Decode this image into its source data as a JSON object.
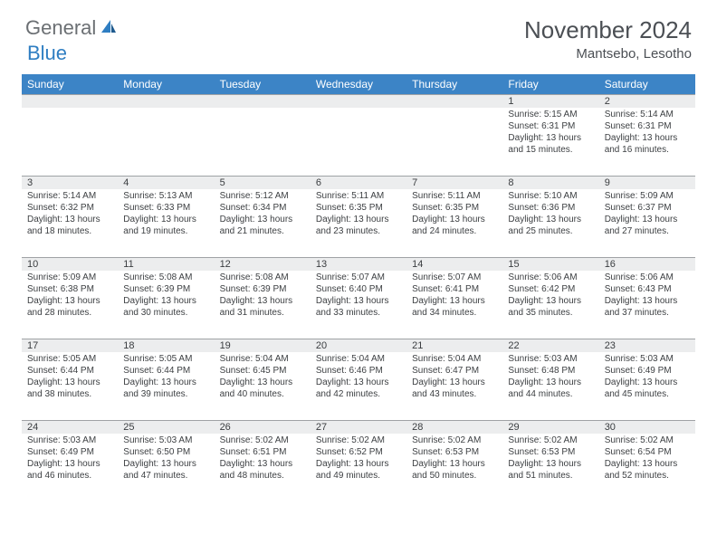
{
  "logo": {
    "general": "General",
    "blue": "Blue"
  },
  "title": "November 2024",
  "subtitle": "Mantsebo, Lesotho",
  "colors": {
    "header_bg": "#3c84c6",
    "header_text": "#ffffff",
    "daynum_bg": "#ecedee",
    "row_border": "#9fa2a5",
    "body_text": "#3c3f42",
    "title_text": "#4b4f54",
    "logo_gray": "#6b6f73",
    "logo_blue": "#2f7ec2"
  },
  "day_headers": [
    "Sunday",
    "Monday",
    "Tuesday",
    "Wednesday",
    "Thursday",
    "Friday",
    "Saturday"
  ],
  "weeks": [
    [
      {
        "n": "",
        "sr": "",
        "ss": "",
        "dl": ""
      },
      {
        "n": "",
        "sr": "",
        "ss": "",
        "dl": ""
      },
      {
        "n": "",
        "sr": "",
        "ss": "",
        "dl": ""
      },
      {
        "n": "",
        "sr": "",
        "ss": "",
        "dl": ""
      },
      {
        "n": "",
        "sr": "",
        "ss": "",
        "dl": ""
      },
      {
        "n": "1",
        "sr": "Sunrise: 5:15 AM",
        "ss": "Sunset: 6:31 PM",
        "dl": "Daylight: 13 hours and 15 minutes."
      },
      {
        "n": "2",
        "sr": "Sunrise: 5:14 AM",
        "ss": "Sunset: 6:31 PM",
        "dl": "Daylight: 13 hours and 16 minutes."
      }
    ],
    [
      {
        "n": "3",
        "sr": "Sunrise: 5:14 AM",
        "ss": "Sunset: 6:32 PM",
        "dl": "Daylight: 13 hours and 18 minutes."
      },
      {
        "n": "4",
        "sr": "Sunrise: 5:13 AM",
        "ss": "Sunset: 6:33 PM",
        "dl": "Daylight: 13 hours and 19 minutes."
      },
      {
        "n": "5",
        "sr": "Sunrise: 5:12 AM",
        "ss": "Sunset: 6:34 PM",
        "dl": "Daylight: 13 hours and 21 minutes."
      },
      {
        "n": "6",
        "sr": "Sunrise: 5:11 AM",
        "ss": "Sunset: 6:35 PM",
        "dl": "Daylight: 13 hours and 23 minutes."
      },
      {
        "n": "7",
        "sr": "Sunrise: 5:11 AM",
        "ss": "Sunset: 6:35 PM",
        "dl": "Daylight: 13 hours and 24 minutes."
      },
      {
        "n": "8",
        "sr": "Sunrise: 5:10 AM",
        "ss": "Sunset: 6:36 PM",
        "dl": "Daylight: 13 hours and 25 minutes."
      },
      {
        "n": "9",
        "sr": "Sunrise: 5:09 AM",
        "ss": "Sunset: 6:37 PM",
        "dl": "Daylight: 13 hours and 27 minutes."
      }
    ],
    [
      {
        "n": "10",
        "sr": "Sunrise: 5:09 AM",
        "ss": "Sunset: 6:38 PM",
        "dl": "Daylight: 13 hours and 28 minutes."
      },
      {
        "n": "11",
        "sr": "Sunrise: 5:08 AM",
        "ss": "Sunset: 6:39 PM",
        "dl": "Daylight: 13 hours and 30 minutes."
      },
      {
        "n": "12",
        "sr": "Sunrise: 5:08 AM",
        "ss": "Sunset: 6:39 PM",
        "dl": "Daylight: 13 hours and 31 minutes."
      },
      {
        "n": "13",
        "sr": "Sunrise: 5:07 AM",
        "ss": "Sunset: 6:40 PM",
        "dl": "Daylight: 13 hours and 33 minutes."
      },
      {
        "n": "14",
        "sr": "Sunrise: 5:07 AM",
        "ss": "Sunset: 6:41 PM",
        "dl": "Daylight: 13 hours and 34 minutes."
      },
      {
        "n": "15",
        "sr": "Sunrise: 5:06 AM",
        "ss": "Sunset: 6:42 PM",
        "dl": "Daylight: 13 hours and 35 minutes."
      },
      {
        "n": "16",
        "sr": "Sunrise: 5:06 AM",
        "ss": "Sunset: 6:43 PM",
        "dl": "Daylight: 13 hours and 37 minutes."
      }
    ],
    [
      {
        "n": "17",
        "sr": "Sunrise: 5:05 AM",
        "ss": "Sunset: 6:44 PM",
        "dl": "Daylight: 13 hours and 38 minutes."
      },
      {
        "n": "18",
        "sr": "Sunrise: 5:05 AM",
        "ss": "Sunset: 6:44 PM",
        "dl": "Daylight: 13 hours and 39 minutes."
      },
      {
        "n": "19",
        "sr": "Sunrise: 5:04 AM",
        "ss": "Sunset: 6:45 PM",
        "dl": "Daylight: 13 hours and 40 minutes."
      },
      {
        "n": "20",
        "sr": "Sunrise: 5:04 AM",
        "ss": "Sunset: 6:46 PM",
        "dl": "Daylight: 13 hours and 42 minutes."
      },
      {
        "n": "21",
        "sr": "Sunrise: 5:04 AM",
        "ss": "Sunset: 6:47 PM",
        "dl": "Daylight: 13 hours and 43 minutes."
      },
      {
        "n": "22",
        "sr": "Sunrise: 5:03 AM",
        "ss": "Sunset: 6:48 PM",
        "dl": "Daylight: 13 hours and 44 minutes."
      },
      {
        "n": "23",
        "sr": "Sunrise: 5:03 AM",
        "ss": "Sunset: 6:49 PM",
        "dl": "Daylight: 13 hours and 45 minutes."
      }
    ],
    [
      {
        "n": "24",
        "sr": "Sunrise: 5:03 AM",
        "ss": "Sunset: 6:49 PM",
        "dl": "Daylight: 13 hours and 46 minutes."
      },
      {
        "n": "25",
        "sr": "Sunrise: 5:03 AM",
        "ss": "Sunset: 6:50 PM",
        "dl": "Daylight: 13 hours and 47 minutes."
      },
      {
        "n": "26",
        "sr": "Sunrise: 5:02 AM",
        "ss": "Sunset: 6:51 PM",
        "dl": "Daylight: 13 hours and 48 minutes."
      },
      {
        "n": "27",
        "sr": "Sunrise: 5:02 AM",
        "ss": "Sunset: 6:52 PM",
        "dl": "Daylight: 13 hours and 49 minutes."
      },
      {
        "n": "28",
        "sr": "Sunrise: 5:02 AM",
        "ss": "Sunset: 6:53 PM",
        "dl": "Daylight: 13 hours and 50 minutes."
      },
      {
        "n": "29",
        "sr": "Sunrise: 5:02 AM",
        "ss": "Sunset: 6:53 PM",
        "dl": "Daylight: 13 hours and 51 minutes."
      },
      {
        "n": "30",
        "sr": "Sunrise: 5:02 AM",
        "ss": "Sunset: 6:54 PM",
        "dl": "Daylight: 13 hours and 52 minutes."
      }
    ]
  ]
}
